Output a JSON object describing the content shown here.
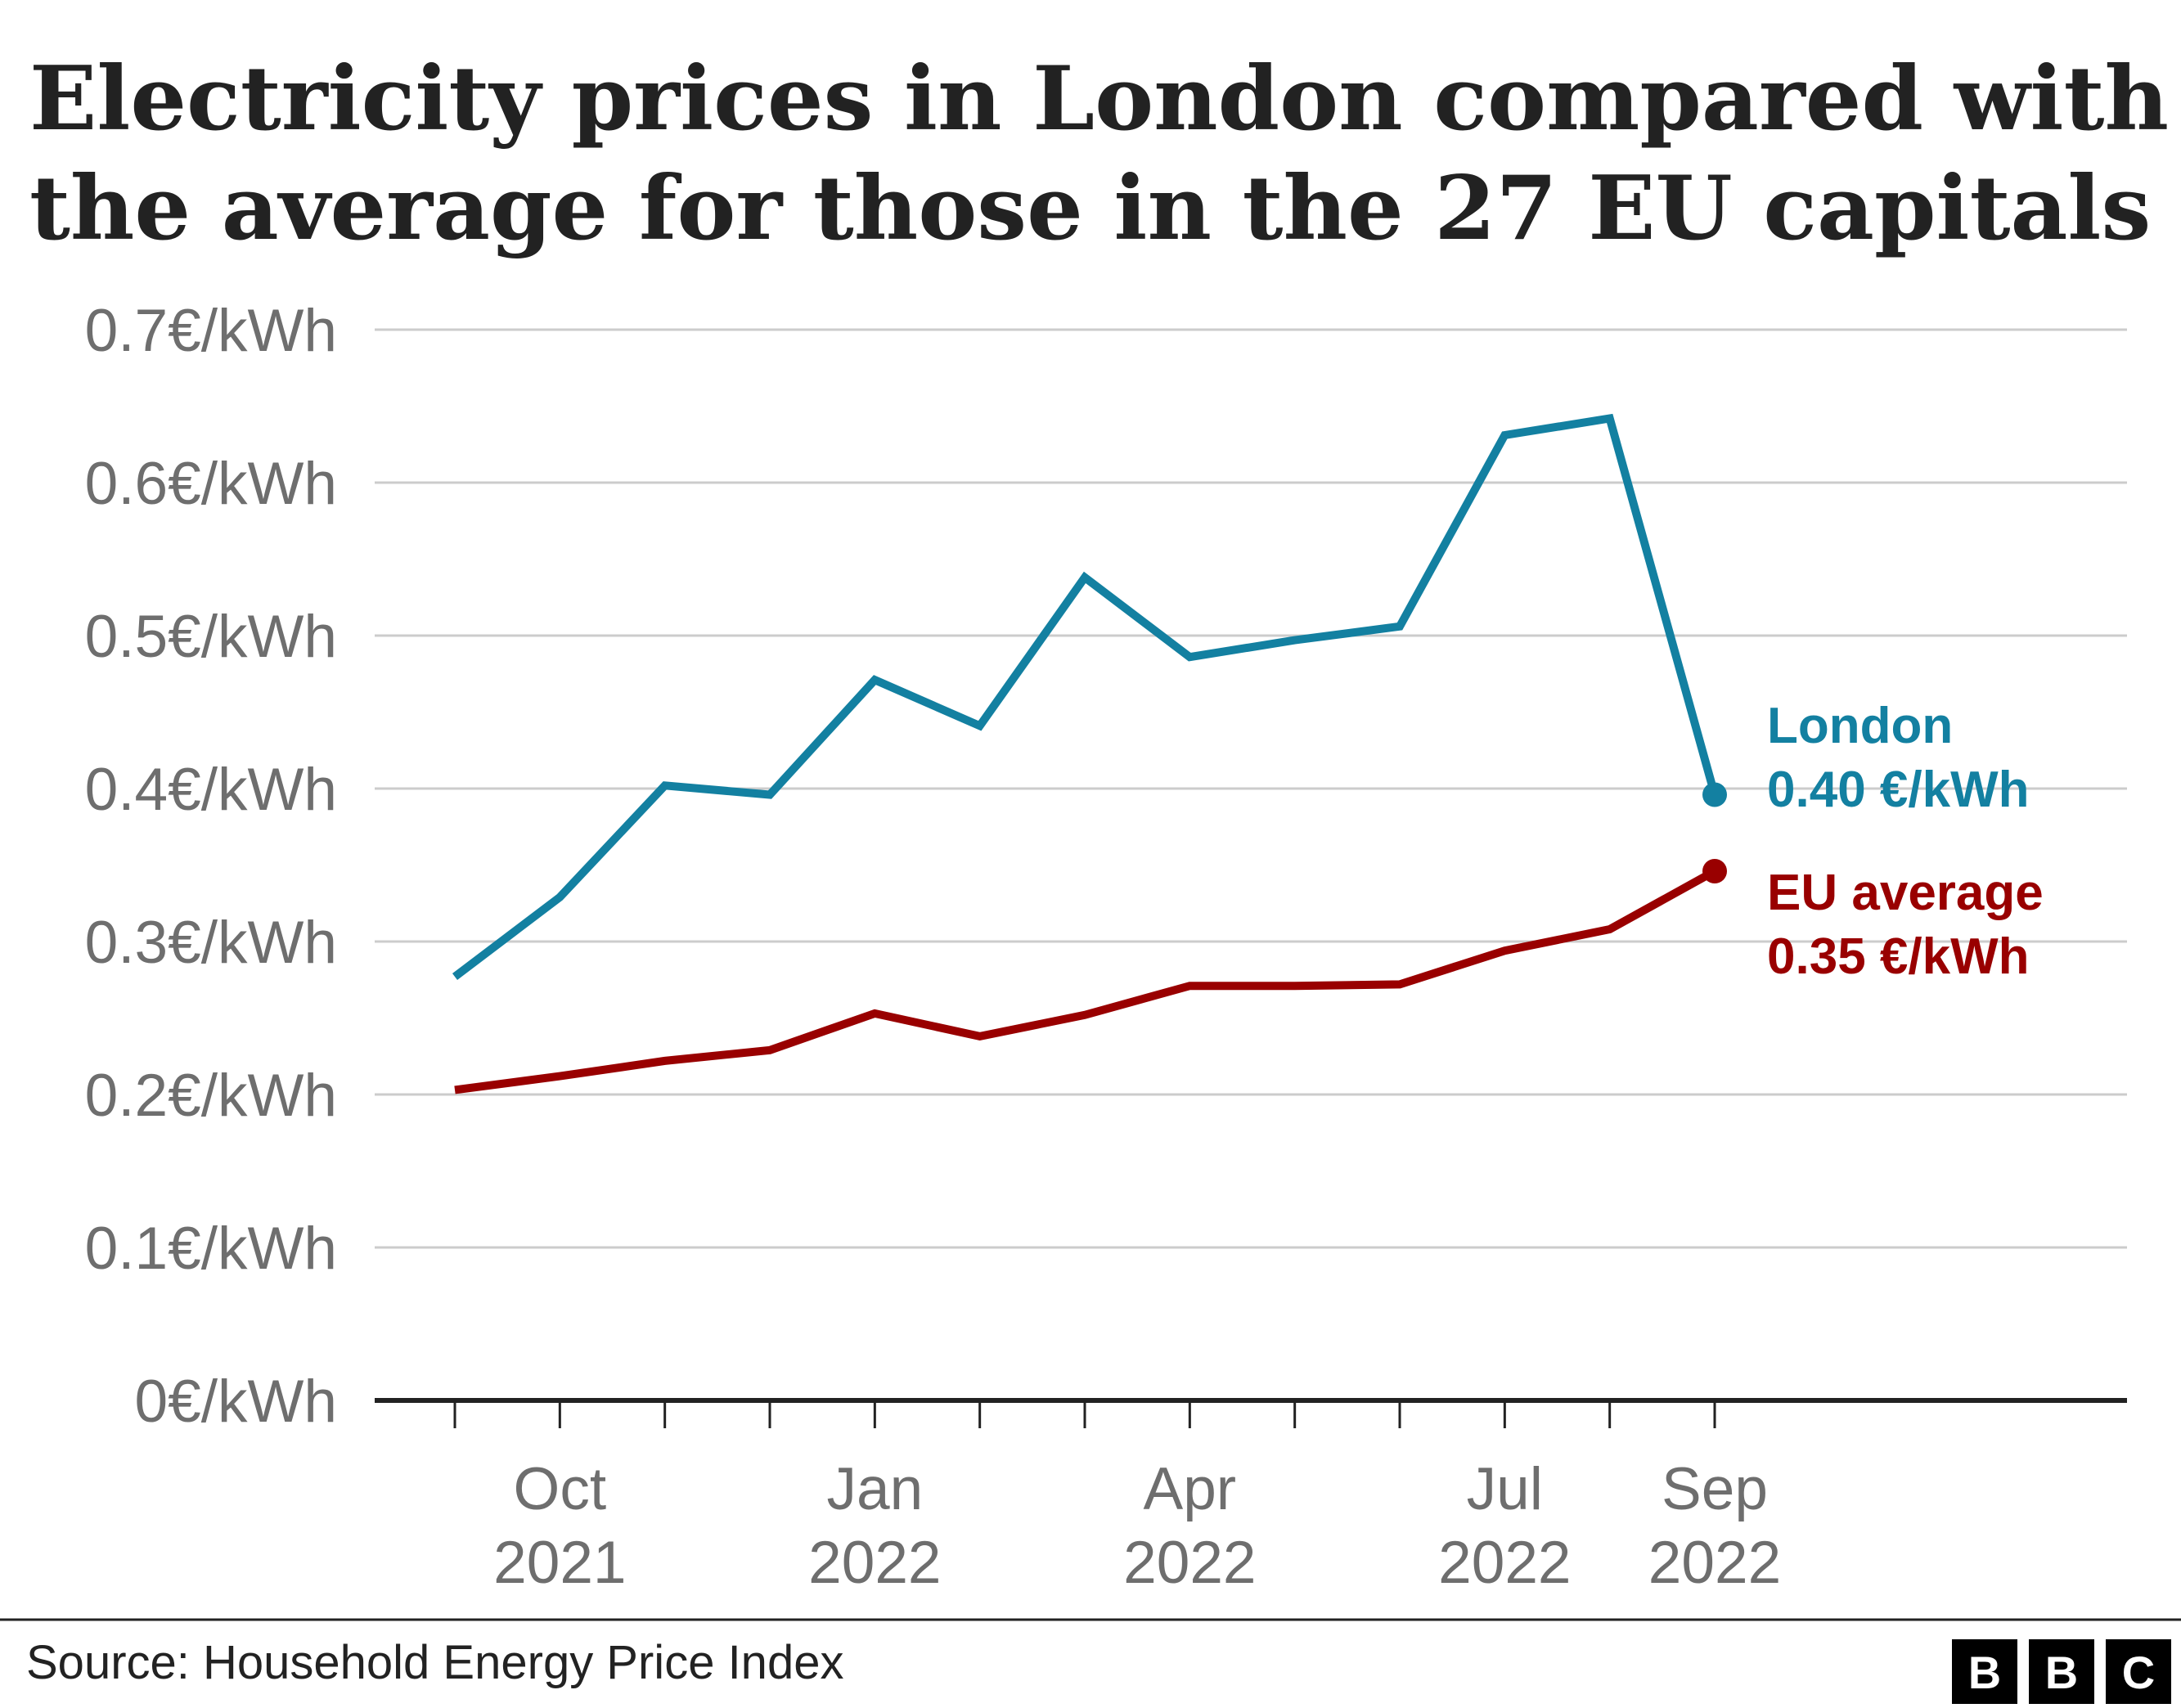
{
  "title": {
    "line1": "Electricity prices in London compared with",
    "line2": "the average for those in the 27 EU capitals"
  },
  "source": "Source: Household Energy Price Index",
  "logo": [
    "B",
    "B",
    "C"
  ],
  "chart_data": {
    "type": "line",
    "title": "Electricity prices in London compared with the average for those in the 27 EU capitals",
    "x": [
      "2021-09",
      "2021-10",
      "2021-11",
      "2021-12",
      "2022-01",
      "2022-02",
      "2022-03",
      "2022-04",
      "2022-05",
      "2022-06",
      "2022-07",
      "2022-08",
      "2022-09"
    ],
    "x_tick_labels": [
      {
        "month": "Oct",
        "year": "2021",
        "x": "2021-10"
      },
      {
        "month": "Jan",
        "year": "2022",
        "x": "2022-01"
      },
      {
        "month": "Apr",
        "year": "2022",
        "x": "2022-04"
      },
      {
        "month": "Jul",
        "year": "2022",
        "x": "2022-07"
      },
      {
        "month": "Sep",
        "year": "2022",
        "x": "2022-09"
      }
    ],
    "y_tick_labels": [
      "0€/kWh",
      "0.1€/kWh",
      "0.2€/kWh",
      "0.3€/kWh",
      "0.4€/kWh",
      "0.5€/kWh",
      "0.6€/kWh",
      "0.7€/kWh"
    ],
    "ylim": [
      0,
      0.7
    ],
    "grid": true,
    "series": [
      {
        "name": "London",
        "value_label": "0.40 €/kWh",
        "color": "#1380a1",
        "values": [
          0.277,
          0.329,
          0.402,
          0.396,
          0.471,
          0.441,
          0.538,
          0.486,
          0.497,
          0.506,
          0.631,
          0.642,
          0.396
        ]
      },
      {
        "name": "EU average",
        "value_label": "0.35 €/kWh",
        "color": "#990000",
        "values": [
          0.203,
          0.212,
          0.222,
          0.229,
          0.253,
          0.238,
          0.252,
          0.271,
          0.271,
          0.272,
          0.294,
          0.308,
          0.346
        ]
      }
    ]
  },
  "colors": {
    "grid": "#cccccc",
    "axis": "#222222",
    "tick_text": "#6e6e6e"
  }
}
